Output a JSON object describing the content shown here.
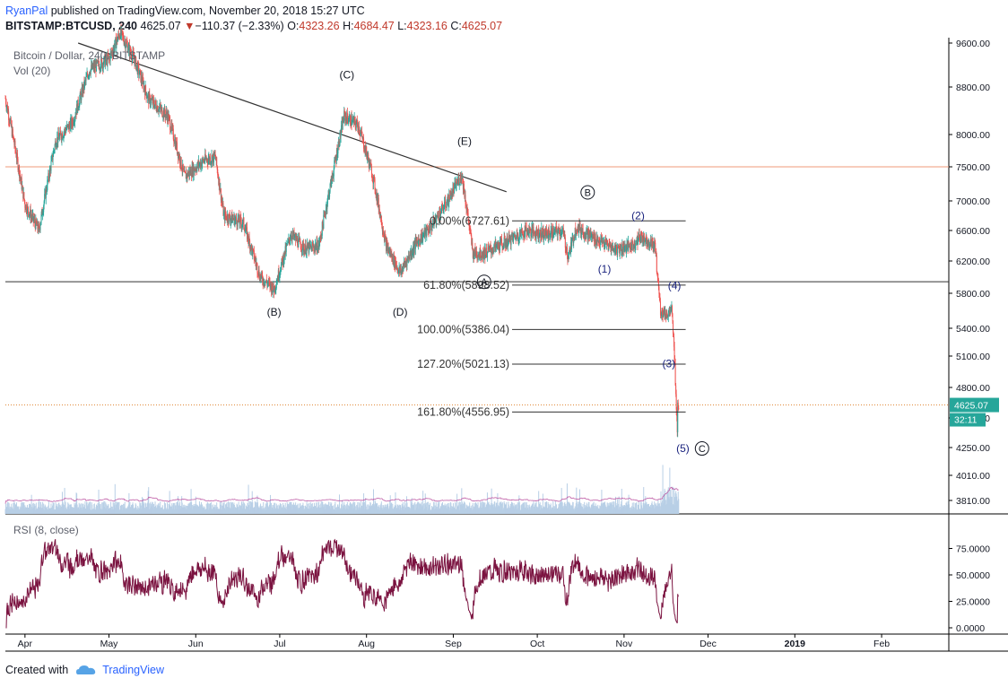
{
  "header": {
    "author": "RyanPal",
    "published_text": "published on TradingView.com, November 20, 2018 15:27 UTC",
    "symbol": "BITSTAMP:BTCUSD, 240",
    "last": "4625.07",
    "change_arrow": "▼",
    "change": "−110.37 (−2.33%)",
    "o_label": "O:",
    "o_value": "4323.26",
    "h_label": "H:",
    "h_value": "4684.47",
    "l_label": "L:",
    "l_value": "4323.16",
    "c_label": "C:",
    "c_value": "4625.07"
  },
  "footer": {
    "created_with": "Created with",
    "brand": "TradingView",
    "brand_icon": "tradingview-cloud-icon"
  },
  "colors": {
    "up": "#26a69a",
    "down": "#ef5350",
    "rsi": "#7b1340",
    "volume": "#b8cfe6",
    "vol_ma": "#c060a8",
    "resistance": "#ef9a7a",
    "wave_blue": "#1a237e",
    "price_tag": "#26a69a"
  },
  "chart_data": {
    "type": "candlestick",
    "title": "Bitcoin / Dollar, 240, BITSTAMP",
    "volume_label": "Vol (20)",
    "rsi_label": "RSI (8, close)",
    "price_axis_ticks": [
      "9600.00",
      "8800.00",
      "8000.00",
      "7500.00",
      "7000.00",
      "6600.00",
      "6200.00",
      "5800.00",
      "5400.00",
      "5100.00",
      "4800.00",
      "4500.00",
      "4250.00",
      "4010.00",
      "3810.00"
    ],
    "rsi_axis_ticks": [
      "75.0000",
      "50.0000",
      "25.0000",
      "0.0000"
    ],
    "time_axis_ticks": [
      "Apr",
      "May",
      "Jun",
      "Jul",
      "Aug",
      "Sep",
      "Oct",
      "Nov",
      "Dec",
      "2019",
      "Feb"
    ],
    "last_price_tag": "4625.07",
    "countdown_tag": "32:11",
    "horizontal_lines": [
      {
        "price": 7500
      },
      {
        "price": 5940
      }
    ],
    "trendline": {
      "from": {
        "date": "2018-04-20",
        "price": 9600
      },
      "to": {
        "date": "2018-09-20",
        "price": 7130
      }
    },
    "fibonacci_levels": [
      {
        "label": "0.00%(6727.61)",
        "price": 6727.61
      },
      {
        "label": "61.80%(5898.52)",
        "price": 5898.52
      },
      {
        "label": "100.00%(5386.04)",
        "price": 5386.04
      },
      {
        "label": "127.20%(5021.13)",
        "price": 5021.13
      },
      {
        "label": "161.80%(4556.95)",
        "price": 4556.95
      }
    ],
    "wave_labels_black": [
      {
        "text": "(B)",
        "date": "2018-06-29",
        "price": 5540
      },
      {
        "text": "(C)",
        "date": "2018-07-25",
        "price": 8950
      },
      {
        "text": "(D)",
        "date": "2018-08-13",
        "price": 5540
      },
      {
        "text": "(E)",
        "date": "2018-09-05",
        "price": 7840
      }
    ],
    "wave_labels_blue": [
      {
        "text": "(1)",
        "date": "2018-10-25",
        "price": 6050
      },
      {
        "text": "(2)",
        "date": "2018-11-06",
        "price": 6750
      },
      {
        "text": "(3)",
        "date": "2018-11-17",
        "price": 4990
      },
      {
        "text": "(4)",
        "date": "2018-11-19",
        "price": 5850
      },
      {
        "text": "(5)",
        "date": "2018-11-22",
        "price": 4210
      }
    ],
    "wave_labels_circled": [
      {
        "text": "A",
        "date": "2018-09-12",
        "price": 5895
      },
      {
        "text": "B",
        "date": "2018-10-19",
        "price": 7070
      },
      {
        "text": "C",
        "date": "2018-11-25",
        "price": 4210
      }
    ],
    "price_path": [
      {
        "date": "2018-03-25",
        "price": 8600
      },
      {
        "date": "2018-04-01",
        "price": 6950
      },
      {
        "date": "2018-04-06",
        "price": 6600
      },
      {
        "date": "2018-04-12",
        "price": 7900
      },
      {
        "date": "2018-04-18",
        "price": 8200
      },
      {
        "date": "2018-04-24",
        "price": 9100
      },
      {
        "date": "2018-05-01",
        "price": 9300
      },
      {
        "date": "2018-05-05",
        "price": 9800
      },
      {
        "date": "2018-05-10",
        "price": 9300
      },
      {
        "date": "2018-05-15",
        "price": 8600
      },
      {
        "date": "2018-05-22",
        "price": 8300
      },
      {
        "date": "2018-05-28",
        "price": 7350
      },
      {
        "date": "2018-06-04",
        "price": 7600
      },
      {
        "date": "2018-06-08",
        "price": 7650
      },
      {
        "date": "2018-06-11",
        "price": 6800
      },
      {
        "date": "2018-06-18",
        "price": 6700
      },
      {
        "date": "2018-06-24",
        "price": 6000
      },
      {
        "date": "2018-06-29",
        "price": 5850
      },
      {
        "date": "2018-07-05",
        "price": 6550
      },
      {
        "date": "2018-07-10",
        "price": 6350
      },
      {
        "date": "2018-07-15",
        "price": 6400
      },
      {
        "date": "2018-07-20",
        "price": 7400
      },
      {
        "date": "2018-07-24",
        "price": 8300
      },
      {
        "date": "2018-07-29",
        "price": 8150
      },
      {
        "date": "2018-08-03",
        "price": 7400
      },
      {
        "date": "2018-08-08",
        "price": 6400
      },
      {
        "date": "2018-08-13",
        "price": 6050
      },
      {
        "date": "2018-08-19",
        "price": 6450
      },
      {
        "date": "2018-08-24",
        "price": 6650
      },
      {
        "date": "2018-08-30",
        "price": 7000
      },
      {
        "date": "2018-09-04",
        "price": 7380
      },
      {
        "date": "2018-09-08",
        "price": 6300
      },
      {
        "date": "2018-09-12",
        "price": 6300
      },
      {
        "date": "2018-09-20",
        "price": 6450
      },
      {
        "date": "2018-09-27",
        "price": 6600
      },
      {
        "date": "2018-10-04",
        "price": 6550
      },
      {
        "date": "2018-10-10",
        "price": 6600
      },
      {
        "date": "2018-10-12",
        "price": 6250
      },
      {
        "date": "2018-10-15",
        "price": 6650
      },
      {
        "date": "2018-10-22",
        "price": 6480
      },
      {
        "date": "2018-10-29",
        "price": 6350
      },
      {
        "date": "2018-11-04",
        "price": 6400
      },
      {
        "date": "2018-11-07",
        "price": 6520
      },
      {
        "date": "2018-11-12",
        "price": 6400
      },
      {
        "date": "2018-11-14",
        "price": 5600
      },
      {
        "date": "2018-11-16",
        "price": 5550
      },
      {
        "date": "2018-11-18",
        "price": 5600
      },
      {
        "date": "2018-11-19",
        "price": 5100
      },
      {
        "date": "2018-11-20",
        "price": 4400
      },
      {
        "date": "2018-11-20",
        "price": 4625
      }
    ]
  }
}
